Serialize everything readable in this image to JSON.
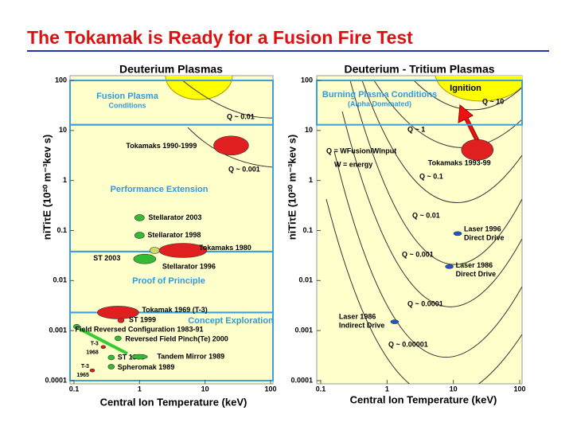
{
  "title": "The Tokamak is Ready for a Fusion Fire Test",
  "chart_data": [
    {
      "type": "scatter",
      "title": "Deuterium Plasmas",
      "x_label": "Central Ion Temperature (keV)",
      "y_label": "niTiτE (10²⁰ m⁻³kev s)",
      "log_scale": true,
      "xlim": [
        0.1,
        100
      ],
      "ylim": [
        0.0001,
        100
      ],
      "xticks": [
        0.1,
        1,
        10,
        100
      ],
      "yticks": [
        0.0001,
        0.001,
        0.01,
        0.1,
        1,
        10,
        100
      ],
      "regions": [
        {
          "label": [
            "Fusion Plasma",
            "Conditions"
          ],
          "ymin": 13,
          "ymax": 100
        },
        {
          "label": [
            "Performance Extension"
          ],
          "ymin": 0.038,
          "ymax": 13
        },
        {
          "label": [
            "Proof of Principle"
          ],
          "ymin": 0.0023,
          "ymax": 0.038
        },
        {
          "label": [
            "Concept Exploration"
          ],
          "ymin": 0.0001,
          "ymax": 0.0023
        }
      ],
      "q_labels": [
        "Q ~ 0.01",
        "Q ~ 0.001"
      ],
      "notes": [],
      "points": [
        {
          "label": [
            "Tokamaks 1990-1999"
          ],
          "x": 25,
          "y": 5,
          "color": "#e02020"
        },
        {
          "label": [
            "Stellarator 2003"
          ],
          "x": 1,
          "y": 0.18,
          "color": "#33bb33"
        },
        {
          "label": [
            "Stellarator 1998"
          ],
          "x": 1,
          "y": 0.08,
          "color": "#33bb33"
        },
        {
          "label": [
            "Tokamaks 1980"
          ],
          "x": 4.6,
          "y": 0.04,
          "color": "#e02020"
        },
        {
          "label": [
            "ST 2003"
          ],
          "x": 1.7,
          "y": 0.04,
          "color": "#ccdd66"
        },
        {
          "label": [
            "Stellarator 1996"
          ],
          "x": 1.2,
          "y": 0.027,
          "color": "#33bb33"
        },
        {
          "label": [
            "Tokamak 1969 (T-3)"
          ],
          "x": 0.47,
          "y": 0.0023,
          "color": "#e02020"
        },
        {
          "label": [
            "ST 1999"
          ],
          "x": 0.52,
          "y": 0.0016,
          "color": "#e02020"
        },
        {
          "label": [
            "Field Reversed Configuration 1983-91"
          ],
          "x": 0.11,
          "y": 0.0012,
          "color": "#33bb33"
        },
        {
          "label": [
            "Reversed Field Pinch(Te) 2000"
          ],
          "x": 0.47,
          "y": 0.0007,
          "color": "#33bb33"
        },
        {
          "label": [
            "T-3",
            "1968"
          ],
          "x": 0.28,
          "y": 0.00047,
          "color": "#e02020"
        },
        {
          "label": [
            "ST 1998"
          ],
          "x": 0.37,
          "y": 0.00029,
          "color": "#33bb33"
        },
        {
          "label": [
            "Tandem Mirror 1989"
          ],
          "x": 1,
          "y": 0.0003,
          "color": "#33bb33"
        },
        {
          "label": [
            "Spheromak 1989"
          ],
          "x": 0.37,
          "y": 0.00019,
          "color": "#33bb33"
        },
        {
          "label": [
            "T-3",
            "1965"
          ],
          "x": 0.19,
          "y": 0.00016,
          "color": "#e02020"
        }
      ]
    },
    {
      "type": "scatter",
      "title": "Deuterium - Tritium Plasmas",
      "x_label": "Central Ion Temperature (keV)",
      "y_label": "niTiτE (10²⁰ m⁻³kev s)",
      "log_scale": true,
      "xlim": [
        0.1,
        100
      ],
      "ylim": [
        0.0001,
        100
      ],
      "xticks": [
        0.1,
        1,
        10,
        100
      ],
      "yticks": [
        0.0001,
        0.001,
        0.01,
        0.1,
        1,
        10,
        100
      ],
      "regions": [
        {
          "label": [
            "Burning Plasma  Conditions",
            "(Alpha Dominated)"
          ],
          "ymin": 13,
          "ymax": 100
        }
      ],
      "q_labels": [
        "Q ~ 10",
        "Q ~ 1",
        "Q ~ 0.1",
        "Q ~ 0.01",
        "Q ~ 0.001",
        "Q ~ 0.0001",
        "Q ~ 0.00001"
      ],
      "notes": [
        "Ignition",
        "Q = WFusion/WInput",
        "W = energy"
      ],
      "points": [
        {
          "label": [
            "Tokamaks 1993-99"
          ],
          "x": 23,
          "y": 4.1,
          "color": "#e02020"
        },
        {
          "label": [
            "Laser 1996",
            "Direct Drive"
          ],
          "x": 11.6,
          "y": 0.087,
          "color": "#2255cc"
        },
        {
          "label": [
            "Laser 1986",
            "Direct Drive"
          ],
          "x": 8.7,
          "y": 0.019,
          "color": "#2255cc"
        },
        {
          "label": [
            "Laser 1986",
            "Indirect Drive"
          ],
          "x": 1.3,
          "y": 0.0015,
          "color": "#2255cc"
        }
      ]
    }
  ]
}
